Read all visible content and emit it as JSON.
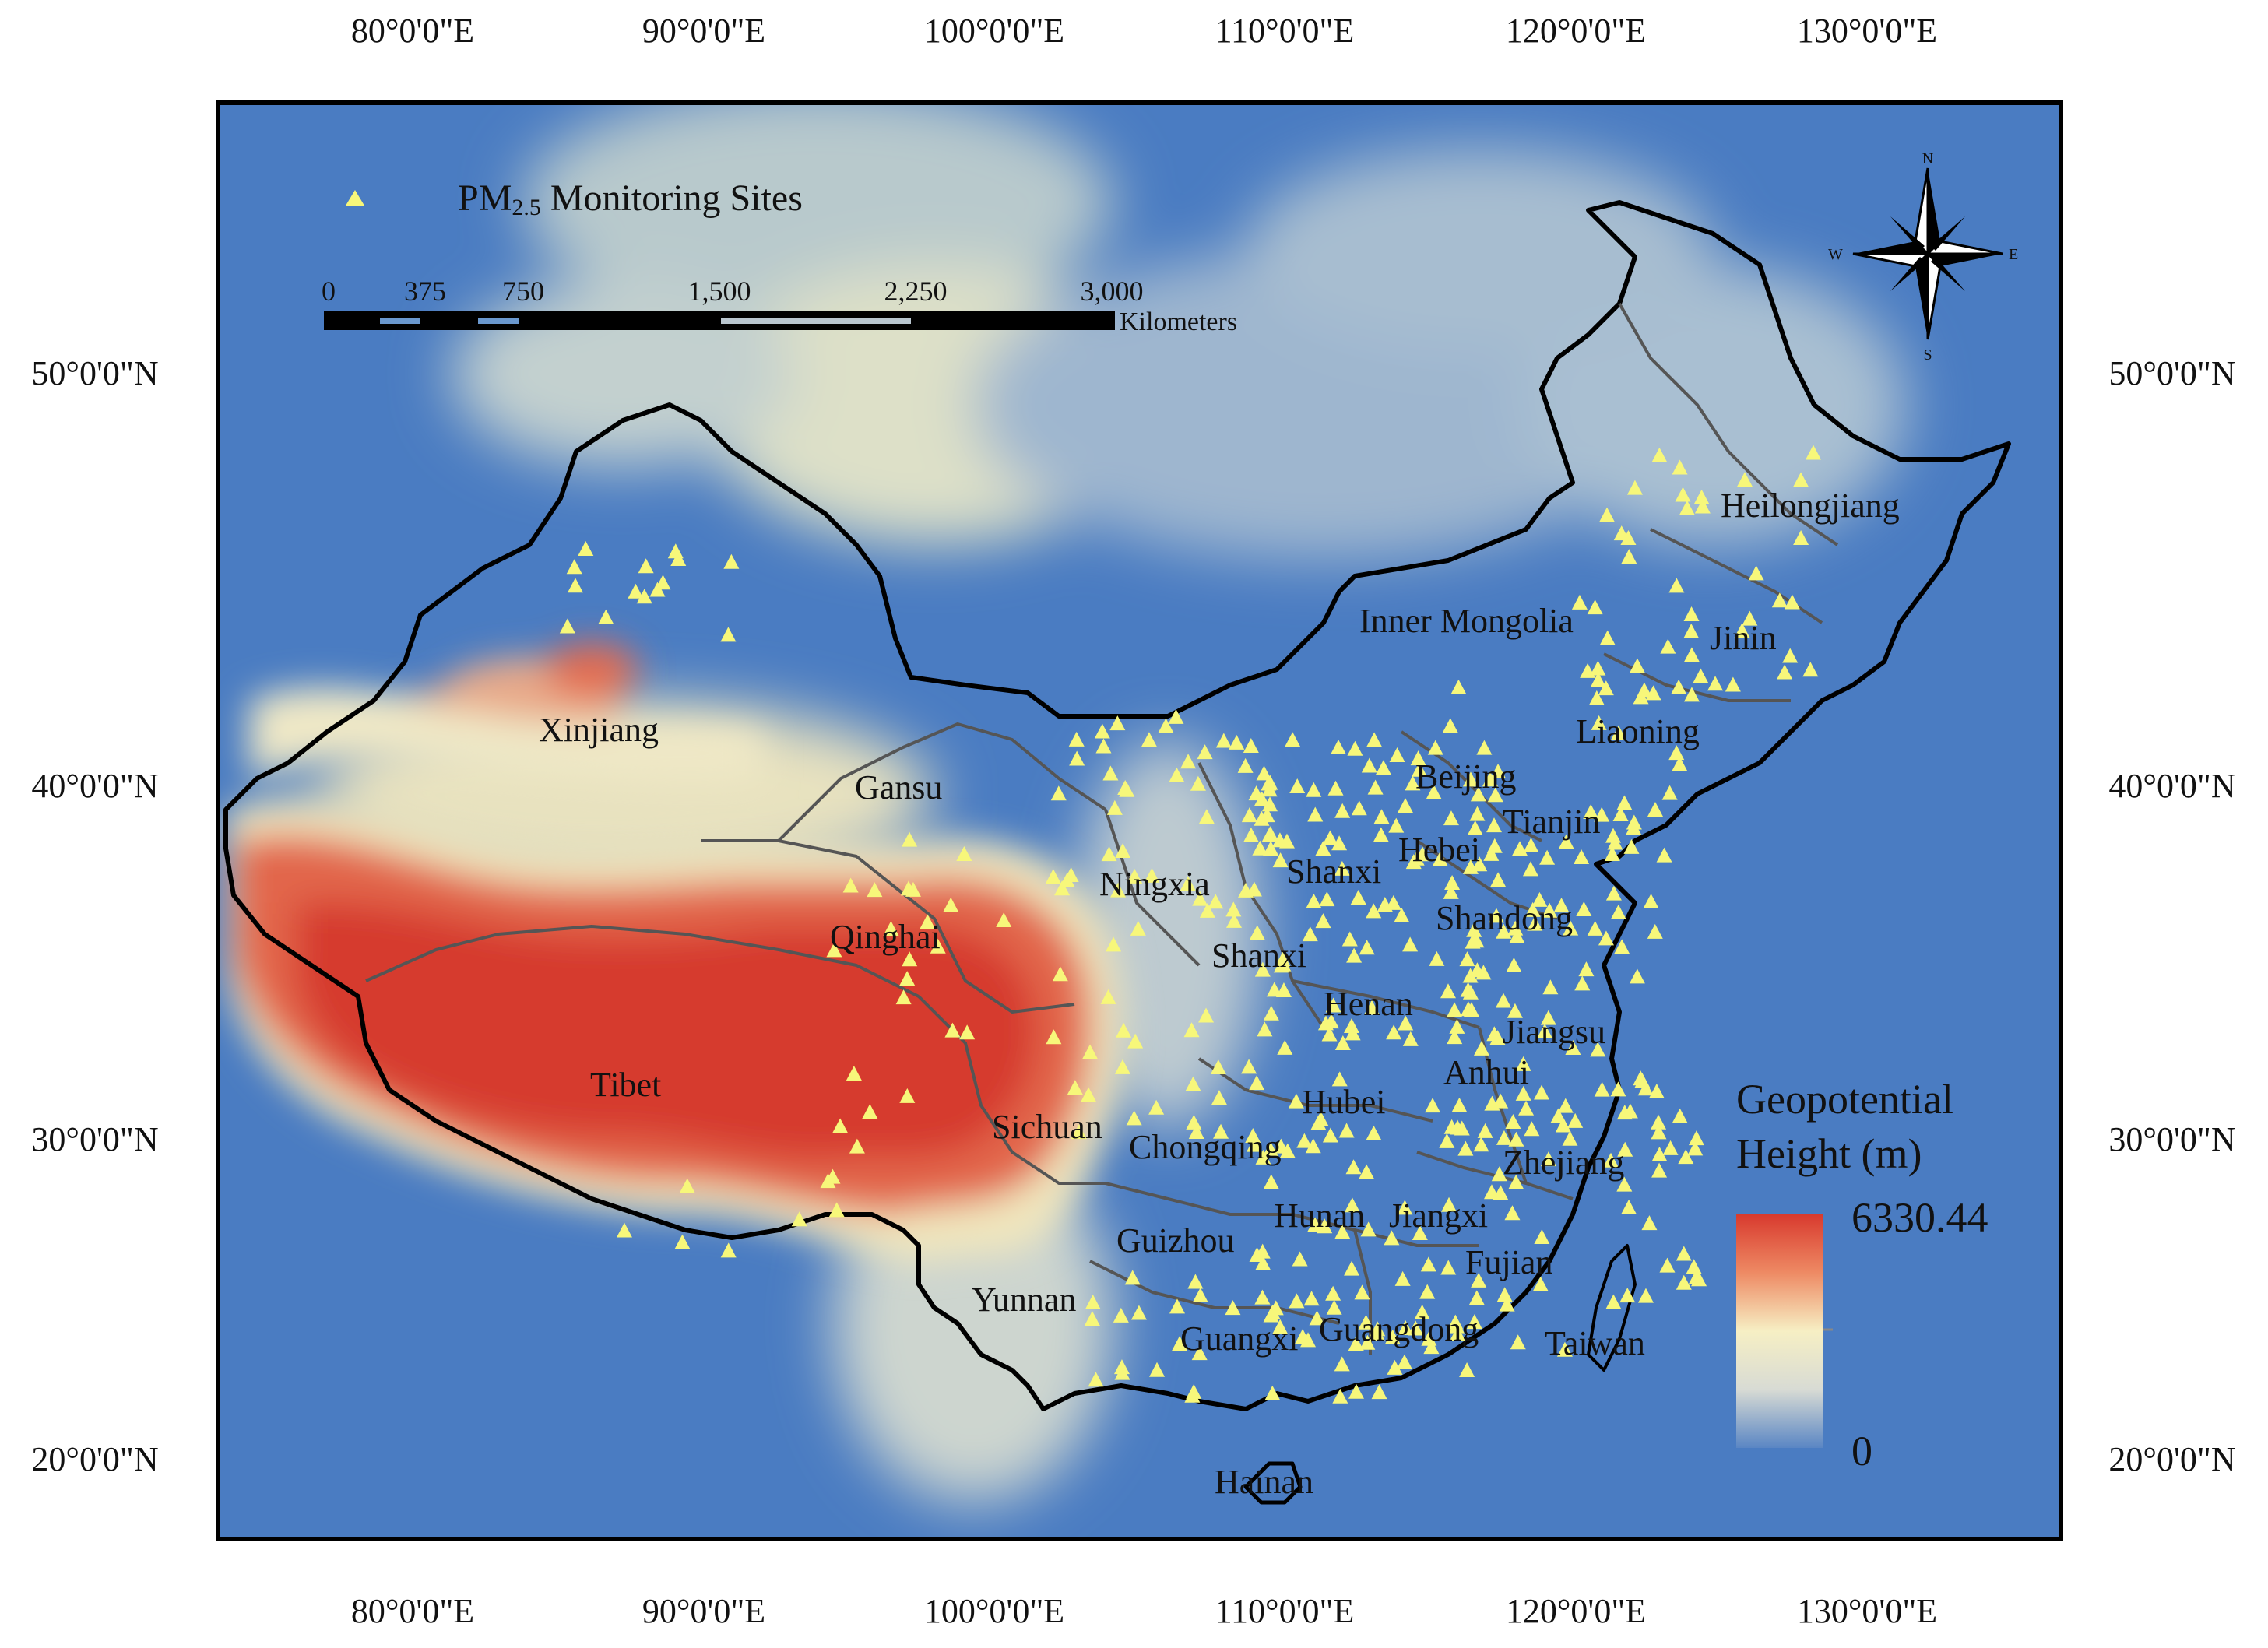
{
  "map": {
    "longitude_labels": [
      "80°0'0\"E",
      "90°0'0\"E",
      "100°0'0\"E",
      "110°0'0\"E",
      "120°0'0\"E",
      "130°0'0\"E"
    ],
    "latitude_labels": [
      "50°0'0\"N",
      "40°0'0\"N",
      "30°0'0\"N",
      "20°0'0\"N"
    ],
    "provinces": [
      "Xinjiang",
      "Gansu",
      "Qinghai",
      "Tibet",
      "Sichuan",
      "Yunnan",
      "Ningxia",
      "Shanxi",
      "Shanxi",
      "Inner Mongolia",
      "Heilongjiang",
      "Jinin",
      "Liaoning",
      "Beijing",
      "Tianjin",
      "Hebei",
      "Shandong",
      "Henan",
      "Jiangsu",
      "Anhui",
      "Hubei",
      "Chongqing",
      "Zhejiang",
      "Hunan",
      "Jiangxi",
      "Guizhou",
      "Fujian",
      "Guangxi",
      "Guangdong",
      "Taiwan",
      "Hainan"
    ],
    "colors": {
      "low": "#4a7cc2",
      "mid": "#f2f0c8",
      "high": "#d83a2e",
      "border": "#000000",
      "province_border": "#555555",
      "site": "#f7f77a"
    }
  },
  "legend": {
    "sites_prefix": "PM",
    "sites_sub": "2.5",
    "sites_suffix": " Monitoring Sites",
    "colorbar_title_line1": "Geopotential",
    "colorbar_title_line2": "Height (m)",
    "colorbar_max": "6330.44",
    "colorbar_min": "0"
  },
  "scalebar": {
    "ticks": [
      "0",
      "375",
      "750",
      "1,500",
      "2,250",
      "3,000"
    ],
    "unit": "Kilometers"
  },
  "north_arrow": {
    "n": "N",
    "s": "S",
    "e": "E",
    "w": "W"
  }
}
